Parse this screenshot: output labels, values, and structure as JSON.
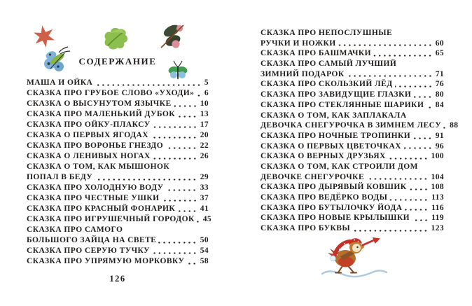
{
  "header": {
    "title": "СОДЕРЖАНИЕ"
  },
  "footer": {
    "left_page_number": "126"
  },
  "toc_left": [
    {
      "lines": [
        "МАША И ОЙКА"
      ],
      "page": "5"
    },
    {
      "lines": [
        "СКАЗКА ПРО ГРУБОЕ СЛОВО «УХОДИ»"
      ],
      "page": "6"
    },
    {
      "lines": [
        "СКАЗКА О ВЫСУНУТОМ ЯЗЫЧКЕ"
      ],
      "page": "10"
    },
    {
      "lines": [
        "СКАЗКА ПРО МАЛЕНЬКИЙ ДУБОК"
      ],
      "page": "13"
    },
    {
      "lines": [
        "СКАЗКА ПРО ОЙКУ-ПЛАКСУ"
      ],
      "page": "17"
    },
    {
      "lines": [
        "СКАЗКА О ПЕРВЫХ ЯГОДАХ"
      ],
      "page": "20"
    },
    {
      "lines": [
        "СКАЗКА ПРО ВОРОНЬЕ ГНЕЗДО"
      ],
      "page": "22"
    },
    {
      "lines": [
        "СКАЗКА О ЛЕНИВЫХ НОГАХ"
      ],
      "page": "26"
    },
    {
      "lines": [
        "СКАЗКА О ТОМ, КАК МЫШОНОК",
        "ПОПАЛ В БЕДУ"
      ],
      "page": "29"
    },
    {
      "lines": [
        "СКАЗКА ПРО ХОЛОДНУЮ ВОДУ"
      ],
      "page": "33"
    },
    {
      "lines": [
        "СКАЗКА ПРО ЧЕСТНЫЕ УШКИ"
      ],
      "page": "37"
    },
    {
      "lines": [
        "СКАЗКА ПРО КРАСНЫЙ ФОНАРИК"
      ],
      "page": "41"
    },
    {
      "lines": [
        "СКАЗКА ПРО ИГРУШЕЧНЫЙ ГОРОДОК"
      ],
      "page": "45"
    },
    {
      "lines": [
        "СКАЗКА ПРО САМОГО",
        "БОЛЬШОГО ЗАЙЦА НА СВЕТЕ"
      ],
      "page": "50"
    },
    {
      "lines": [
        "СКАЗКА ПРО СЕРУЮ ТУЧКУ"
      ],
      "page": "54"
    },
    {
      "lines": [
        "СКАЗКА ПРО УПРЯМУЮ МОРКОВКУ"
      ],
      "page": "58"
    }
  ],
  "toc_right": [
    {
      "lines": [
        "СКАЗКА ПРО НЕПОСЛУШНЫЕ",
        "РУЧКИ И НОЖКИ"
      ],
      "page": "60"
    },
    {
      "lines": [
        "СКАЗКА ПРО БАШМАЧКИ"
      ],
      "page": "65"
    },
    {
      "lines": [
        "СКАЗКА ПРО САМЫЙ ЛУЧШИЙ",
        "ЗИМНИЙ ПОДАРОК"
      ],
      "page": "71"
    },
    {
      "lines": [
        "СКАЗКА ПРО СКОЛЬЗКИЙ ЛЁД"
      ],
      "page": "76"
    },
    {
      "lines": [
        "СКАЗКА ПРО ЗАВИДУЩИЕ ГЛАЗКИ"
      ],
      "page": "80"
    },
    {
      "lines": [
        "СКАЗКА ПРО СТЕКЛЯННЫЕ ШАРИКИ"
      ],
      "page": "84"
    },
    {
      "lines": [
        "СКАЗКА О ТОМ, КАК ЗАПЛАКАЛА",
        "ДЕВОЧКА СНЕГУРОЧКА В ЗИМНЕМ ЛЕСУ"
      ],
      "page": "88"
    },
    {
      "lines": [
        "СКАЗКА ПРО НОЧНЫЕ ТРОПИНКИ"
      ],
      "page": "91"
    },
    {
      "lines": [
        "СКАЗКА О ПЕРВЫХ ЦВЕТОЧКАХ"
      ],
      "page": "96"
    },
    {
      "lines": [
        "СКАЗКА О ВЕРНЫХ ДРУЗЬЯХ"
      ],
      "page": "100"
    },
    {
      "lines": [
        "СКАЗКА О ТОМ, КАК СТРОИЛИ ДОМ",
        "ДЕВОЧКЕ СНЕГУРОЧКЕ"
      ],
      "page": "104"
    },
    {
      "lines": [
        "СКАЗКА ПРО ДЫРЯВЫЙ КОВШИК"
      ],
      "page": "108"
    },
    {
      "lines": [
        "СКАЗКА ПРО ВЕДЁРКО ВОДЫ"
      ],
      "page": "113"
    },
    {
      "lines": [
        "СКАЗКА ПРО БУТЫЛОЧКУ ЙОДА"
      ],
      "page": "116"
    },
    {
      "lines": [
        "СКАЗКА ПРО НОВЫЕ КРЫЛЫШКИ"
      ],
      "page": "119"
    },
    {
      "lines": [
        "СКАЗКА ПРО БУКВЫ"
      ],
      "page": "123"
    }
  ],
  "decorations": {
    "star": {
      "color": "#cf5f49"
    },
    "blue_moth": {
      "wing_color": "#7fb2d9",
      "body_color": "#86b83f"
    },
    "oak_leaf": {
      "color": "#8dbf4e",
      "vein_color": "#578f2e"
    },
    "dark_moth": {
      "wing_color": "#3d4b34",
      "tip_color": "#dc8f99",
      "body_color": "#7c4a28"
    },
    "butterfly": {
      "top_wing_color": "#3f9e4d",
      "bottom_wing_color": "#8bbfe0"
    },
    "bird": {
      "hat_color": "#c63026",
      "body_color": "#b5702d",
      "trumpet_color": "#c63026",
      "snow_line_color": "#9fc0d8"
    }
  },
  "colors": {
    "text": "#201d1b",
    "background": "#ffffff"
  }
}
